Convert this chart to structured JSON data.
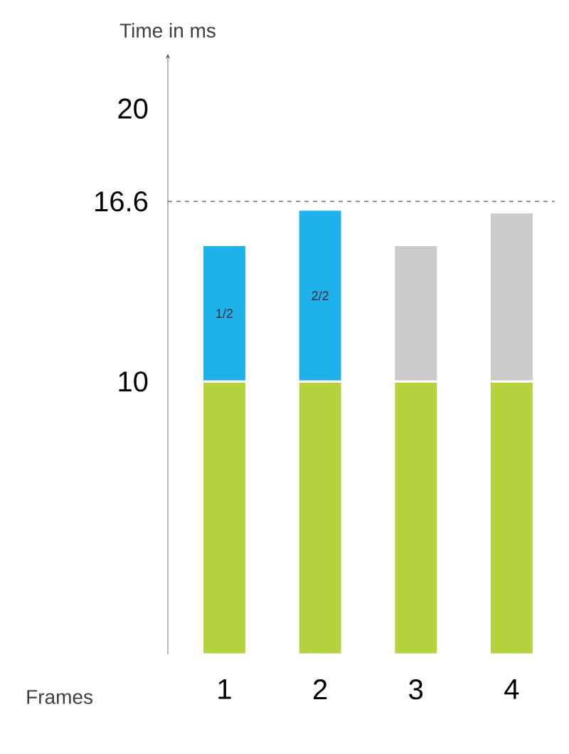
{
  "chart_data": {
    "type": "bar",
    "stacked": true,
    "xlabel": "Frames",
    "ylabel": "Time in ms",
    "categories": [
      "1",
      "2",
      "3",
      "4"
    ],
    "ylim": [
      0,
      22
    ],
    "yticks": [
      10,
      16.6,
      20
    ],
    "series": [
      {
        "color": "#b5d33f",
        "values": [
          10,
          10,
          10,
          10
        ]
      },
      {
        "color": "#1eb1ea",
        "values": [
          5,
          6.3,
          null,
          null
        ]
      },
      {
        "color": "#cbcbcb",
        "values": [
          null,
          null,
          5,
          6.2
        ]
      }
    ],
    "annotations": [
      "1/2",
      "2/2"
    ],
    "ref_lines": [
      {
        "axis": "y",
        "value": 16.6,
        "line_style": "dashed",
        "color": "#555555"
      }
    ]
  }
}
